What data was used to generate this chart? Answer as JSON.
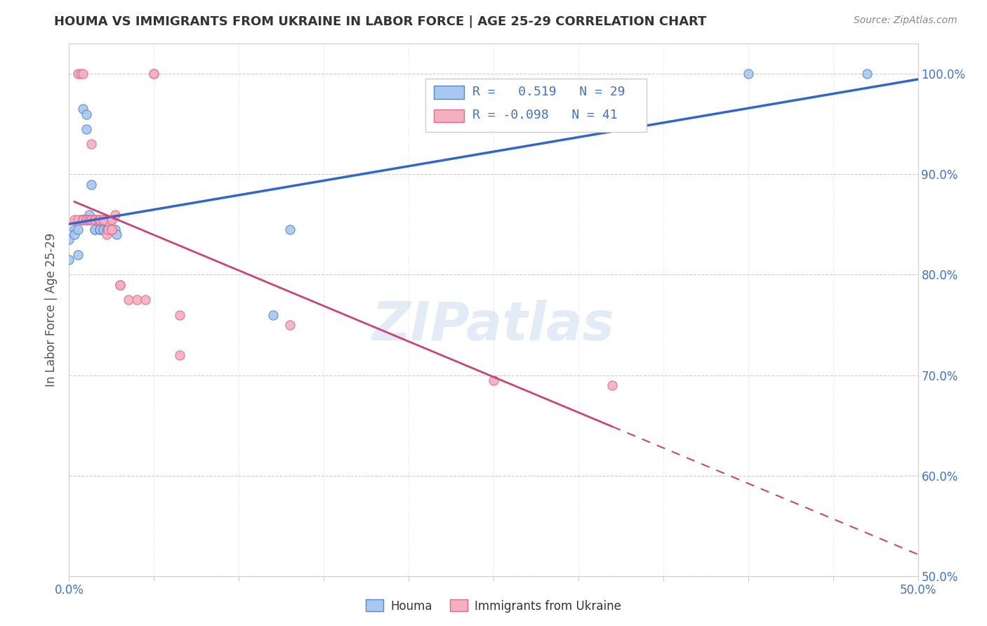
{
  "title": "HOUMA VS IMMIGRANTS FROM UKRAINE IN LABOR FORCE | AGE 25-29 CORRELATION CHART",
  "source": "Source: ZipAtlas.com",
  "ylabel": "In Labor Force | Age 25-29",
  "xlim": [
    0.0,
    0.5
  ],
  "ylim": [
    0.5,
    1.03
  ],
  "ytick_pos": [
    0.5,
    0.6,
    0.7,
    0.8,
    0.9,
    1.0
  ],
  "ytick_labels": [
    "50.0%",
    "60.0%",
    "70.0%",
    "80.0%",
    "90.0%",
    "100.0%"
  ],
  "xtick_pos": [
    0.0,
    0.05,
    0.1,
    0.15,
    0.2,
    0.25,
    0.3,
    0.35,
    0.4,
    0.45,
    0.5
  ],
  "xtick_labels": [
    "0.0%",
    "",
    "",
    "",
    "",
    "",
    "",
    "",
    "",
    "",
    "50.0%"
  ],
  "houma_color": "#a8c8f0",
  "ukraine_color": "#f4b0c0",
  "houma_edge_color": "#5585cc",
  "ukraine_edge_color": "#e06888",
  "houma_line_color": "#3366cc",
  "ukraine_line_color": "#cc4477",
  "legend_R_houma": "0.519",
  "legend_N_houma": "29",
  "legend_R_ukraine": "-0.098",
  "legend_N_ukraine": "41",
  "watermark": "ZIPatlas",
  "houma_x": [
    0.0,
    0.0,
    0.003,
    0.003,
    0.005,
    0.005,
    0.007,
    0.008,
    0.008,
    0.008,
    0.01,
    0.01,
    0.012,
    0.013,
    0.015,
    0.015,
    0.018,
    0.018,
    0.02,
    0.02,
    0.022,
    0.023,
    0.025,
    0.027,
    0.028,
    0.12,
    0.13,
    0.4,
    0.47
  ],
  "houma_y": [
    0.835,
    0.815,
    0.845,
    0.84,
    0.845,
    0.82,
    0.855,
    0.855,
    0.855,
    0.965,
    0.945,
    0.96,
    0.86,
    0.89,
    0.845,
    0.845,
    0.845,
    0.845,
    0.845,
    0.845,
    0.845,
    0.845,
    0.845,
    0.845,
    0.84,
    0.76,
    0.845,
    1.0,
    1.0
  ],
  "ukraine_x": [
    0.003,
    0.005,
    0.005,
    0.007,
    0.008,
    0.008,
    0.008,
    0.01,
    0.01,
    0.01,
    0.012,
    0.012,
    0.013,
    0.013,
    0.015,
    0.015,
    0.015,
    0.015,
    0.017,
    0.018,
    0.02,
    0.02,
    0.022,
    0.023,
    0.025,
    0.025,
    0.025,
    0.025,
    0.027,
    0.03,
    0.03,
    0.035,
    0.04,
    0.045,
    0.05,
    0.05,
    0.065,
    0.065,
    0.13,
    0.25,
    0.32
  ],
  "ukraine_y": [
    0.855,
    0.855,
    1.0,
    1.0,
    0.855,
    0.855,
    1.0,
    0.855,
    0.855,
    0.855,
    0.855,
    0.855,
    0.855,
    0.93,
    0.855,
    0.855,
    0.855,
    0.855,
    0.855,
    0.855,
    0.855,
    0.855,
    0.84,
    0.845,
    0.845,
    0.845,
    0.855,
    0.855,
    0.86,
    0.79,
    0.79,
    0.775,
    0.775,
    0.775,
    1.0,
    1.0,
    0.76,
    0.72,
    0.75,
    0.695,
    0.69
  ]
}
